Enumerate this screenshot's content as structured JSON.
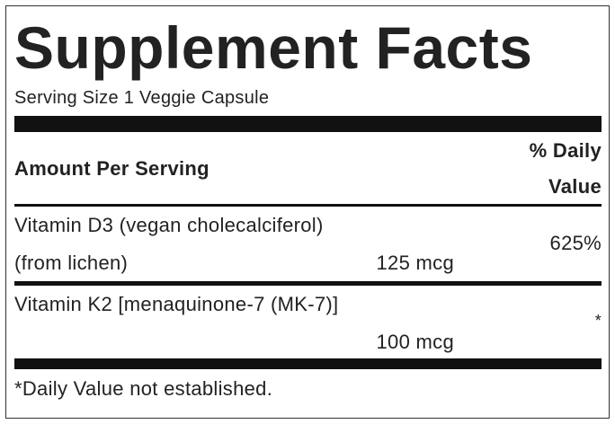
{
  "title": "Supplement Facts",
  "serving_size": "Serving Size 1 Veggie Capsule",
  "table": {
    "header": {
      "amount": "Amount Per Serving",
      "daily_value": [
        "% Daily",
        "Value"
      ]
    },
    "rows": [
      {
        "name": [
          "Vitamin D3 (vegan cholecalciferol)",
          "(from lichen)"
        ],
        "amount": "125 mcg",
        "daily_value": "625%"
      },
      {
        "name": [
          "Vitamin K2 [menaquinone-7 (MK-7)]"
        ],
        "amount": "100 mcg",
        "daily_value": "*"
      }
    ]
  },
  "footnote": "*Daily Value not established."
}
